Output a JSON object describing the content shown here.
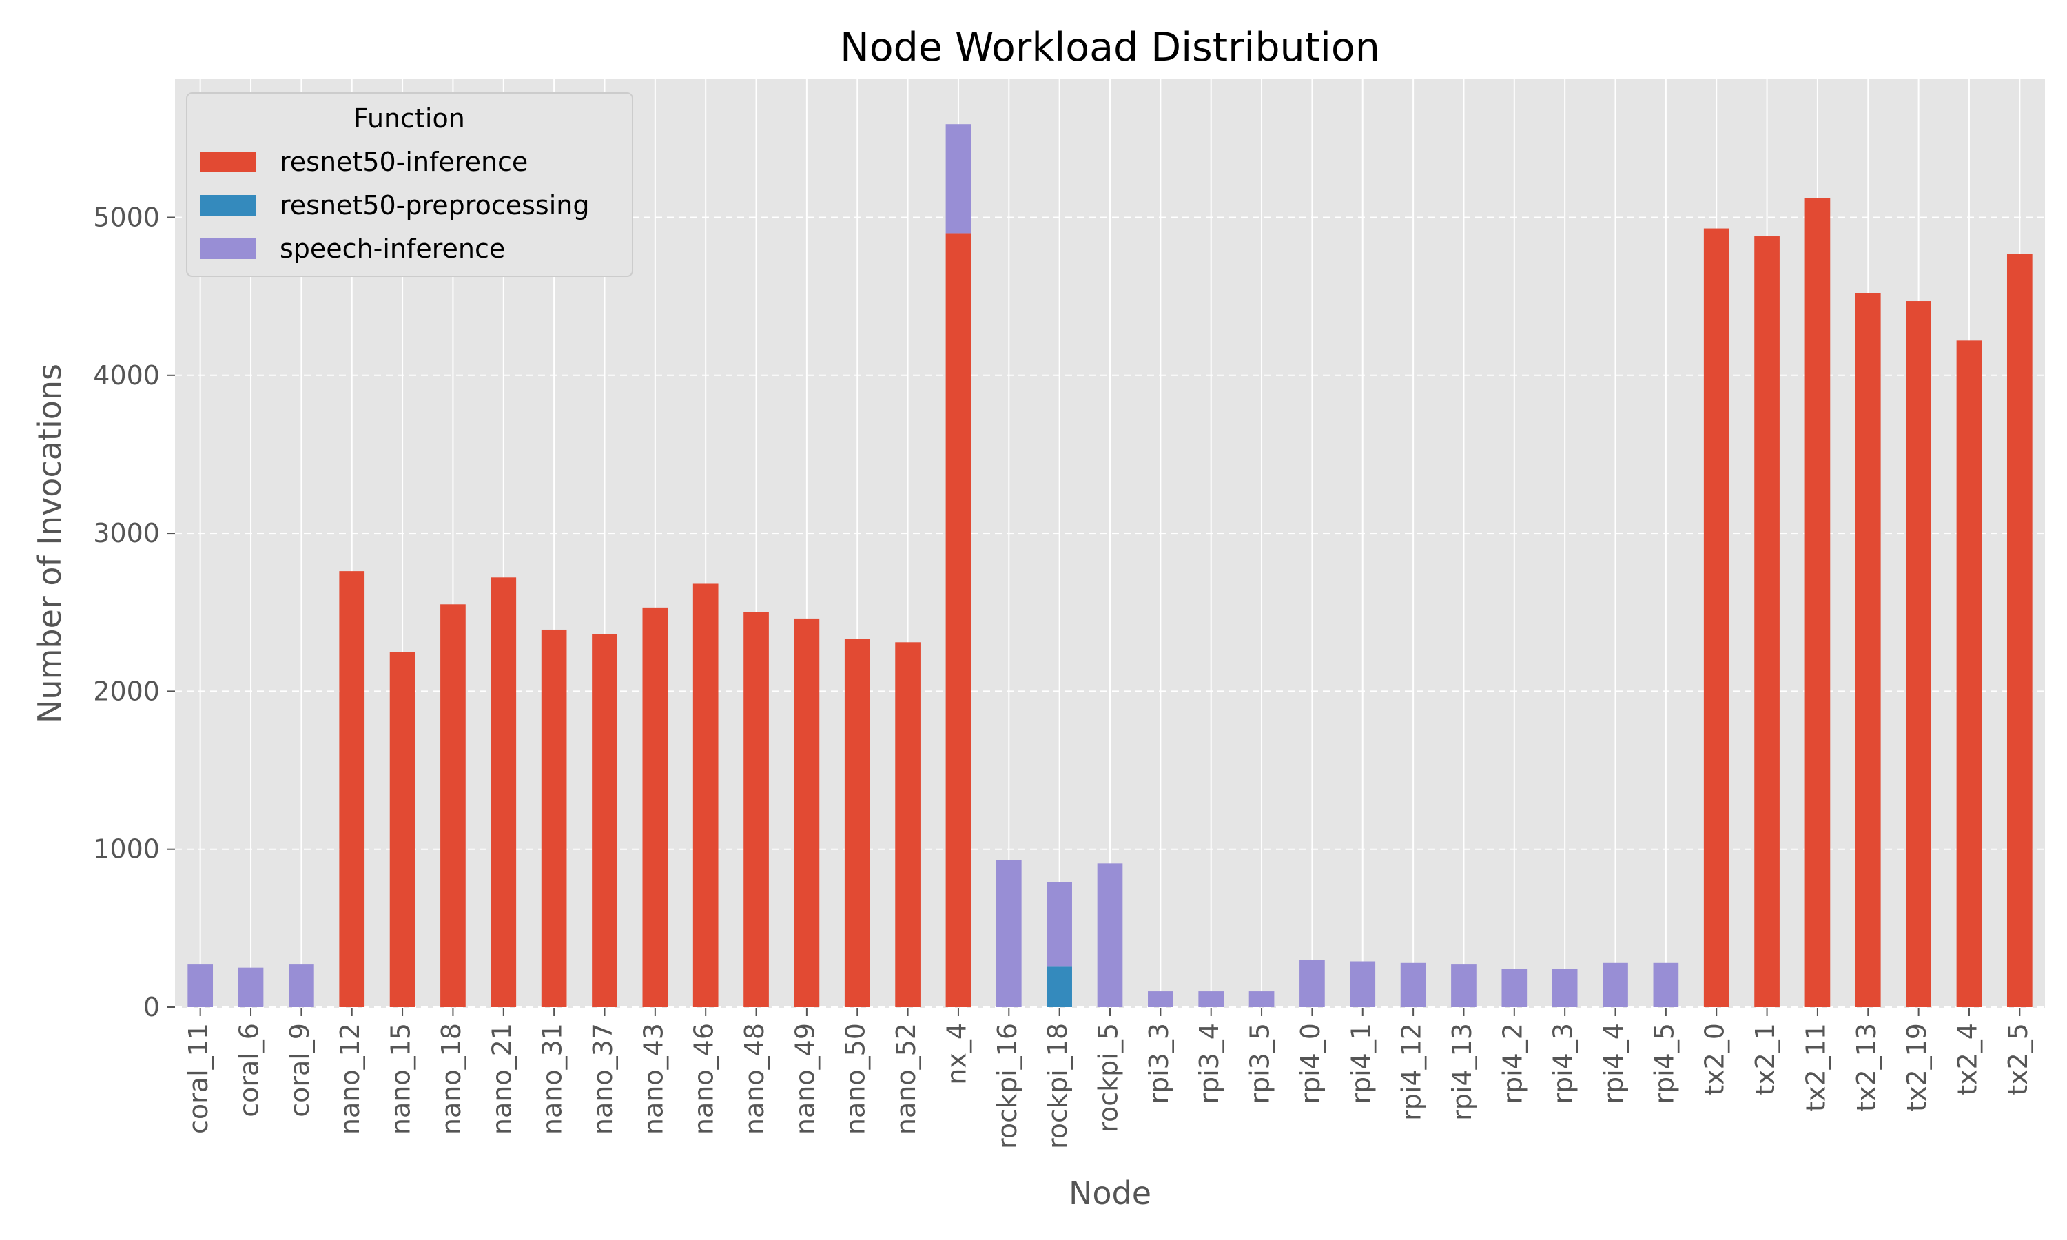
{
  "chart_data": {
    "type": "bar",
    "stacked": true,
    "title": "Node Workload Distribution",
    "xlabel": "Node",
    "ylabel": "Number of Invocations",
    "ylim": [
      0,
      5850
    ],
    "yticks": [
      0,
      1000,
      2000,
      3000,
      4000,
      5000
    ],
    "grid": true,
    "legend": {
      "title": "Function",
      "position": "top-left"
    },
    "categories": [
      "coral_11",
      "coral_6",
      "coral_9",
      "nano_12",
      "nano_15",
      "nano_18",
      "nano_21",
      "nano_31",
      "nano_37",
      "nano_43",
      "nano_46",
      "nano_48",
      "nano_49",
      "nano_50",
      "nano_52",
      "nx_4",
      "rockpi_16",
      "rockpi_18",
      "rockpi_5",
      "rpi3_3",
      "rpi3_4",
      "rpi3_5",
      "rpi4_0",
      "rpi4_1",
      "rpi4_12",
      "rpi4_13",
      "rpi4_2",
      "rpi4_3",
      "rpi4_4",
      "rpi4_5",
      "tx2_0",
      "tx2_1",
      "tx2_11",
      "tx2_13",
      "tx2_19",
      "tx2_4",
      "tx2_5"
    ],
    "series": [
      {
        "name": "resnet50-inference",
        "color": "#E24A33",
        "values": [
          0,
          0,
          0,
          2760,
          2250,
          2550,
          2720,
          2390,
          2360,
          2530,
          2680,
          2500,
          2460,
          2330,
          2310,
          4900,
          0,
          0,
          0,
          0,
          0,
          0,
          0,
          0,
          0,
          0,
          0,
          0,
          0,
          0,
          4930,
          4880,
          5120,
          4520,
          4470,
          4220,
          4770
        ]
      },
      {
        "name": "resnet50-preprocessing",
        "color": "#348ABD",
        "values": [
          0,
          0,
          0,
          0,
          0,
          0,
          0,
          0,
          0,
          0,
          0,
          0,
          0,
          0,
          0,
          0,
          0,
          260,
          0,
          0,
          0,
          0,
          0,
          0,
          0,
          0,
          0,
          0,
          0,
          0,
          0,
          0,
          0,
          0,
          0,
          0,
          0
        ]
      },
      {
        "name": "speech-inference",
        "color": "#988ED5",
        "values": [
          270,
          250,
          270,
          0,
          0,
          0,
          0,
          0,
          0,
          0,
          0,
          0,
          0,
          0,
          0,
          690,
          930,
          530,
          910,
          100,
          100,
          100,
          300,
          290,
          280,
          270,
          240,
          240,
          280,
          280,
          0,
          0,
          0,
          0,
          0,
          0,
          0
        ]
      }
    ]
  }
}
